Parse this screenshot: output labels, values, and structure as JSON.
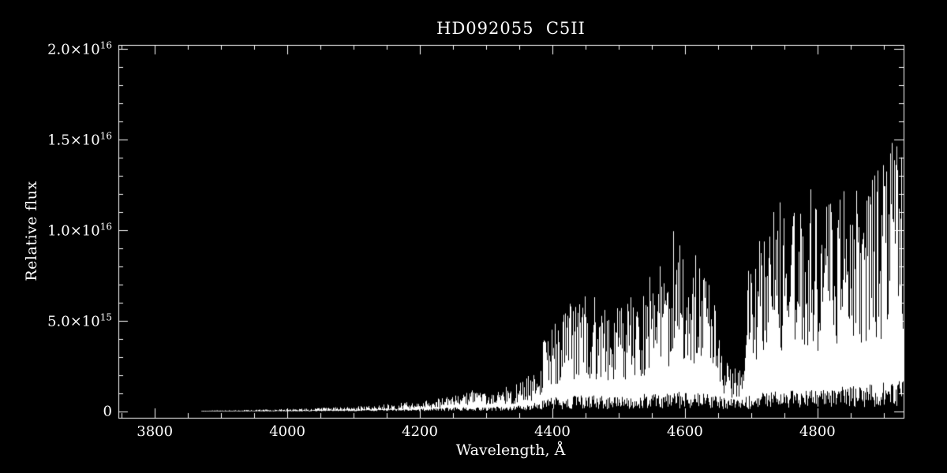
{
  "title": "HD092055  C5II",
  "colors": {
    "background": "#000000",
    "foreground": "#ffffff"
  },
  "x_axis": {
    "label": "Wavelength, Å",
    "ticks": [
      "3800",
      "4000",
      "4200",
      "4400",
      "4600",
      "4800"
    ]
  },
  "y_axis": {
    "label": "Relative flux",
    "ticks": [
      {
        "mantissa": "0",
        "exponent": ""
      },
      {
        "mantissa": "5.0×10",
        "exponent": "15"
      },
      {
        "mantissa": "1.0×10",
        "exponent": "16"
      },
      {
        "mantissa": "1.5×10",
        "exponent": "16"
      },
      {
        "mantissa": "2.0×10",
        "exponent": "16"
      }
    ]
  },
  "chart_data": {
    "type": "line",
    "title": "HD092055  C5II",
    "xlabel": "Wavelength, Å",
    "ylabel": "Relative flux",
    "xlim": [
      3745,
      4930
    ],
    "ylim": [
      0,
      2e+16
    ],
    "x_ticks": [
      3800,
      4000,
      4200,
      4400,
      4600,
      4800
    ],
    "x_minor_step": 50,
    "y_ticks": [
      0,
      5000000000000000.0,
      1e+16,
      1.5e+16,
      2e+16
    ],
    "y_minor_step": 1000000000000000.0,
    "grid": false,
    "legend": false,
    "flux_unit": 1000000000000000.0,
    "envelope_note": "Noisy stellar spectrum; sampled envelope points as [wavelength_A, min_flux, max_flux] in units of flux_unit (1e15). Flux is near zero below 4100 A, rises through molecular bands from ~4380 A, dips near 4660-4700 A, then climbs steeply with dense absorption lines to ~1.5e16 at the red edge.",
    "envelope_points": [
      [
        3870,
        0.01,
        0.05
      ],
      [
        3920,
        0.02,
        0.08
      ],
      [
        3970,
        0.03,
        0.11
      ],
      [
        4020,
        0.04,
        0.15
      ],
      [
        4070,
        0.06,
        0.22
      ],
      [
        4120,
        0.09,
        0.32
      ],
      [
        4170,
        0.12,
        0.45
      ],
      [
        4210,
        0.16,
        0.6
      ],
      [
        4245,
        0.22,
        0.85
      ],
      [
        4275,
        0.28,
        1.15
      ],
      [
        4305,
        0.25,
        1.0
      ],
      [
        4335,
        0.3,
        1.4
      ],
      [
        4360,
        0.38,
        1.8
      ],
      [
        4376,
        0.5,
        2.4
      ],
      [
        4390,
        0.7,
        4.2
      ],
      [
        4405,
        0.8,
        5.2
      ],
      [
        4420,
        0.8,
        5.8
      ],
      [
        4440,
        0.9,
        6.4
      ],
      [
        4465,
        0.9,
        6.0
      ],
      [
        4490,
        0.8,
        5.5
      ],
      [
        4515,
        0.9,
        6.3
      ],
      [
        4540,
        1.0,
        6.9
      ],
      [
        4558,
        1.0,
        8.1
      ],
      [
        4572,
        1.0,
        7.2
      ],
      [
        4585,
        1.1,
        10.6
      ],
      [
        4600,
        1.1,
        8.6
      ],
      [
        4620,
        1.1,
        8.4
      ],
      [
        4640,
        1.0,
        7.0
      ],
      [
        4655,
        0.8,
        3.2
      ],
      [
        4670,
        0.7,
        2.4
      ],
      [
        4685,
        0.8,
        2.8
      ],
      [
        4691,
        0.8,
        3.0
      ],
      [
        4696,
        0.9,
        12.4
      ],
      [
        4701,
        0.9,
        6.5
      ],
      [
        4706,
        1.0,
        9.5
      ],
      [
        4720,
        1.1,
        10.5
      ],
      [
        4740,
        1.1,
        11.0
      ],
      [
        4760,
        1.2,
        11.3
      ],
      [
        4780,
        1.2,
        11.6
      ],
      [
        4800,
        1.3,
        11.8
      ],
      [
        4820,
        1.3,
        12.0
      ],
      [
        4840,
        1.4,
        12.3
      ],
      [
        4860,
        1.4,
        12.7
      ],
      [
        4880,
        1.5,
        13.1
      ],
      [
        4900,
        1.6,
        13.7
      ],
      [
        4915,
        1.7,
        14.5
      ],
      [
        4925,
        1.8,
        15.1
      ],
      [
        4930,
        1.8,
        13.5
      ]
    ]
  }
}
